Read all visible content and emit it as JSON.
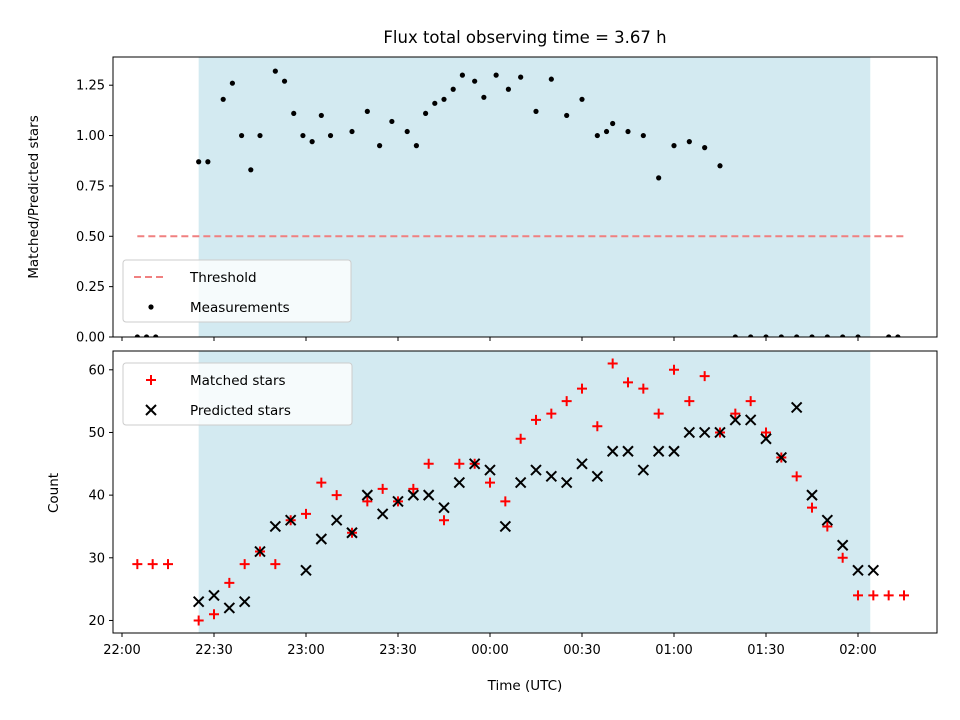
{
  "chart_data": [
    {
      "type": "scatter",
      "title": "Flux total observing time = 3.67 h",
      "xlabel": "",
      "ylabel": "Matched/Predicted stars",
      "ylim": [
        0,
        1.39
      ],
      "yticks": [
        "0.00",
        "0.25",
        "0.50",
        "0.75",
        "1.00",
        "1.25"
      ],
      "xticks_shown": false,
      "observing_window": {
        "start": "22:25",
        "end": "02:04",
        "color": "#d3eaf1"
      },
      "series": [
        {
          "name": "Threshold",
          "style": "dashed-line",
          "color": "#f08080",
          "x": [
            "22:05",
            "02:15"
          ],
          "y": [
            0.5,
            0.5
          ]
        },
        {
          "name": "Measurements",
          "style": "dot",
          "color": "#000000",
          "x": [
            "22:05",
            "22:08",
            "22:11",
            "22:25",
            "22:28",
            "22:33",
            "22:36",
            "22:39",
            "22:42",
            "22:45",
            "22:50",
            "22:53",
            "22:56",
            "22:59",
            "23:02",
            "23:05",
            "23:08",
            "23:15",
            "23:20",
            "23:24",
            "23:28",
            "23:33",
            "23:36",
            "23:39",
            "23:42",
            "23:45",
            "23:48",
            "23:51",
            "23:55",
            "23:58",
            "00:02",
            "00:06",
            "00:10",
            "00:15",
            "00:20",
            "00:25",
            "00:30",
            "00:35",
            "00:38",
            "00:40",
            "00:45",
            "00:50",
            "00:55",
            "01:00",
            "01:05",
            "01:10",
            "01:15",
            "01:20",
            "01:25",
            "01:30",
            "01:35",
            "01:40",
            "01:45",
            "01:50",
            "01:55",
            "02:00",
            "02:10",
            "02:13"
          ],
          "y": [
            0.0,
            0.0,
            0.0,
            0.87,
            0.87,
            1.18,
            1.26,
            1.0,
            0.83,
            1.0,
            1.32,
            1.27,
            1.11,
            1.0,
            0.97,
            1.1,
            1.0,
            1.02,
            1.12,
            0.95,
            1.07,
            1.02,
            0.95,
            1.11,
            1.16,
            1.18,
            1.23,
            1.3,
            1.27,
            1.19,
            1.3,
            1.23,
            1.29,
            1.12,
            1.28,
            1.1,
            1.18,
            1.0,
            1.02,
            1.06,
            1.02,
            1.0,
            0.79,
            0.95,
            0.97,
            0.94,
            0.85,
            0.0,
            0.0,
            0,
            0,
            0,
            0,
            0,
            0,
            0,
            0,
            0
          ]
        }
      ],
      "legend": {
        "position": "lower-left",
        "entries": [
          "Threshold",
          "Measurements"
        ]
      }
    },
    {
      "type": "scatter",
      "title": "",
      "xlabel": "Time (UTC)",
      "ylabel": "Count",
      "ylim": [
        18,
        63
      ],
      "yticks": [
        "20",
        "30",
        "40",
        "50",
        "60"
      ],
      "xticks": [
        "22:00",
        "22:30",
        "23:00",
        "23:30",
        "00:00",
        "00:30",
        "01:00",
        "01:30",
        "02:00"
      ],
      "observing_window": {
        "start": "22:25",
        "end": "02:04",
        "color": "#d3eaf1"
      },
      "series": [
        {
          "name": "Matched stars",
          "marker": "plus",
          "color": "#ff0000",
          "x": [
            "22:05",
            "22:10",
            "22:15",
            "22:25",
            "22:30",
            "22:35",
            "22:40",
            "22:45",
            "22:50",
            "22:55",
            "23:00",
            "23:05",
            "23:10",
            "23:15",
            "23:20",
            "23:25",
            "23:30",
            "23:35",
            "23:40",
            "23:45",
            "23:50",
            "23:55",
            "00:00",
            "00:05",
            "00:10",
            "00:15",
            "00:20",
            "00:25",
            "00:30",
            "00:35",
            "00:40",
            "00:45",
            "00:50",
            "00:55",
            "01:00",
            "01:05",
            "01:10",
            "01:15",
            "01:20",
            "01:25",
            "01:30",
            "01:35",
            "01:40",
            "01:45",
            "01:50",
            "01:55",
            "02:00",
            "02:05",
            "02:10",
            "02:15"
          ],
          "y": [
            29,
            29,
            29,
            20,
            21,
            26,
            29,
            31,
            29,
            36,
            37,
            42,
            40,
            34,
            39,
            41,
            39,
            41,
            45,
            36,
            45,
            45,
            42,
            39,
            49,
            52,
            53,
            55,
            57,
            51,
            61,
            58,
            57,
            53,
            60,
            55,
            59,
            50,
            53,
            55,
            50,
            46,
            43,
            38,
            35,
            30,
            24,
            24,
            24,
            24
          ]
        },
        {
          "name": "Predicted stars",
          "marker": "x",
          "color": "#000000",
          "x": [
            "22:25",
            "22:30",
            "22:35",
            "22:40",
            "22:45",
            "22:50",
            "22:55",
            "23:00",
            "23:05",
            "23:10",
            "23:15",
            "23:20",
            "23:25",
            "23:30",
            "23:35",
            "23:40",
            "23:45",
            "23:50",
            "23:55",
            "00:00",
            "00:05",
            "00:10",
            "00:15",
            "00:20",
            "00:25",
            "00:30",
            "00:35",
            "00:40",
            "00:45",
            "00:50",
            "00:55",
            "01:00",
            "01:05",
            "01:10",
            "01:15",
            "01:20",
            "01:25",
            "01:30",
            "01:35",
            "01:40",
            "01:45",
            "01:50",
            "01:55",
            "02:00",
            "02:05"
          ],
          "y": [
            23,
            24,
            22,
            23,
            31,
            35,
            36,
            28,
            33,
            36,
            34,
            40,
            37,
            39,
            40,
            40,
            38,
            42,
            45,
            44,
            35,
            42,
            44,
            43,
            42,
            45,
            43,
            47,
            47,
            44,
            47,
            47,
            50,
            50,
            50,
            52,
            52,
            49,
            46,
            54,
            40,
            36,
            32,
            28,
            28
          ]
        }
      ],
      "legend": {
        "position": "upper-left",
        "entries": [
          "Matched stars",
          "Predicted stars"
        ]
      }
    }
  ]
}
